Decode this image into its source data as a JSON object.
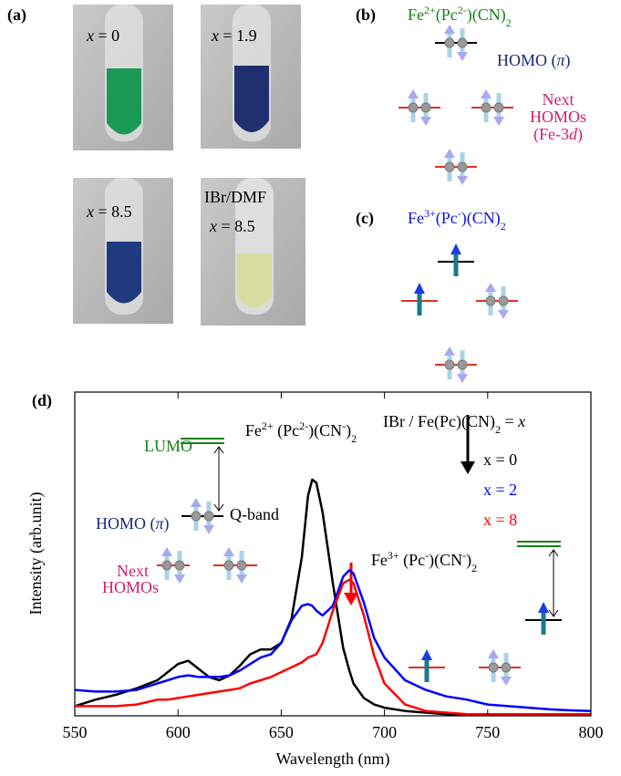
{
  "panels": {
    "a": "(a)",
    "b": "(b)",
    "c": "(c)",
    "d": "(d)"
  },
  "photos": [
    {
      "var": "x",
      "rest": " = 0"
    },
    {
      "var": "x",
      "rest": " = 1.9"
    },
    {
      "var": "x",
      "rest": " = 8.5"
    },
    {
      "title": "IBr/DMF",
      "var": "x",
      "rest": " = 8.5"
    }
  ],
  "diagram_b": {
    "formula": [
      "Fe",
      "2+",
      "(Pc",
      "2-",
      ")(CN)",
      "2"
    ],
    "homo": [
      "HOMO (",
      "π",
      ")"
    ],
    "next": [
      "Next",
      "HOMOs",
      "(Fe-3",
      "d",
      ")"
    ]
  },
  "diagram_c": {
    "formula": [
      "Fe",
      "3+",
      "(Pc",
      "-",
      ")(CN)",
      "2"
    ]
  },
  "chart_data": {
    "type": "line",
    "xlabel": "Wavelength (nm)",
    "ylabel": "Intensity (arb.unit)",
    "xlim": [
      550,
      800
    ],
    "xticks": [
      550,
      600,
      650,
      700,
      750,
      800
    ],
    "ylim": [
      0,
      1
    ],
    "annotations": {
      "fe2": [
        "Fe",
        "2+",
        " (Pc",
        "2-",
        ")(CN",
        "-",
        ")",
        "2"
      ],
      "fe3": [
        "Fe",
        "3+",
        " (Pc",
        "-",
        ")(CN",
        "-",
        ")",
        "2"
      ],
      "legend_title": [
        "IBr / Fe(Pc)(CN)",
        "2",
        " = ",
        "x"
      ],
      "lumo": "LUMO",
      "qband": "Q-band",
      "homo": [
        "HOMO (",
        "π",
        ")"
      ],
      "next": [
        "Next",
        "HOMOs"
      ]
    },
    "x": [
      550,
      560,
      570,
      580,
      590,
      595,
      600,
      605,
      610,
      615,
      620,
      625,
      630,
      635,
      640,
      645,
      650,
      655,
      660,
      663,
      665,
      667,
      670,
      675,
      680,
      683,
      685,
      690,
      695,
      700,
      710,
      720,
      730,
      740,
      750,
      760,
      770,
      780,
      790,
      800
    ],
    "series": [
      {
        "name": "x = 0",
        "color": "#000000",
        "values": [
          0.03,
          0.05,
          0.065,
          0.085,
          0.11,
          0.135,
          0.16,
          0.17,
          0.145,
          0.12,
          0.11,
          0.125,
          0.155,
          0.19,
          0.205,
          0.205,
          0.225,
          0.3,
          0.49,
          0.68,
          0.73,
          0.72,
          0.63,
          0.41,
          0.21,
          0.14,
          0.1,
          0.055,
          0.035,
          0.025,
          0.015,
          0.01,
          0.005,
          0.005,
          0.005,
          0.005,
          0.005,
          0.005,
          0.005,
          0.005
        ]
      },
      {
        "name": "x = 2",
        "color": "#0000ff",
        "values": [
          0.08,
          0.075,
          0.075,
          0.08,
          0.1,
          0.11,
          0.12,
          0.125,
          0.12,
          0.12,
          0.12,
          0.125,
          0.14,
          0.16,
          0.18,
          0.19,
          0.225,
          0.295,
          0.34,
          0.345,
          0.34,
          0.325,
          0.31,
          0.34,
          0.43,
          0.45,
          0.44,
          0.35,
          0.24,
          0.18,
          0.11,
          0.08,
          0.06,
          0.05,
          0.035,
          0.03,
          0.025,
          0.02,
          0.017,
          0.015
        ]
      },
      {
        "name": "x = 8",
        "color": "#ff0000",
        "values": [
          0.03,
          0.03,
          0.03,
          0.035,
          0.05,
          0.05,
          0.055,
          0.06,
          0.065,
          0.07,
          0.075,
          0.08,
          0.085,
          0.1,
          0.11,
          0.12,
          0.135,
          0.15,
          0.165,
          0.18,
          0.185,
          0.19,
          0.225,
          0.325,
          0.41,
          0.42,
          0.41,
          0.31,
          0.185,
          0.1,
          0.035,
          0.015,
          0.01,
          0.005,
          0.005,
          0.005,
          0.005,
          0.005,
          0.005,
          0.005
        ]
      }
    ]
  }
}
